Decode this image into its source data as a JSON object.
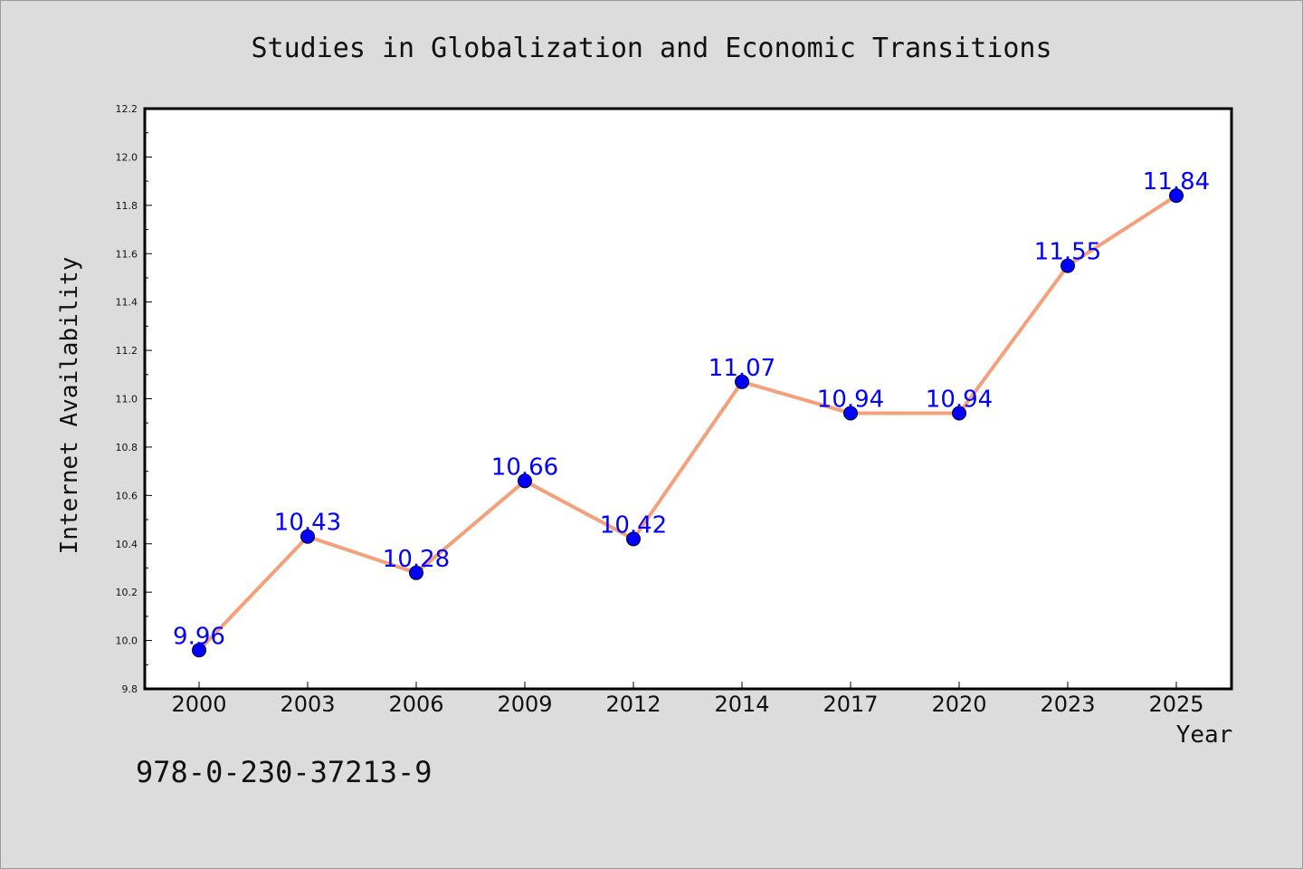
{
  "chart_data": {
    "type": "line",
    "title": "Studies in Globalization and Economic Transitions",
    "xlabel": "Year",
    "ylabel": "Internet Availability",
    "categories": [
      "2000",
      "2003",
      "2006",
      "2009",
      "2012",
      "2014",
      "2017",
      "2020",
      "2023",
      "2025"
    ],
    "series": [
      {
        "values": [
          9.96,
          10.43,
          10.28,
          10.66,
          10.42,
          11.07,
          10.94,
          10.94,
          11.55,
          11.84
        ],
        "data_labels": [
          "9.96",
          "10.43",
          "10.28",
          "10.66",
          "10.42",
          "11.07",
          "10.94",
          "10.94",
          "11.55",
          "11.84"
        ],
        "line_color": "#f4a07a",
        "marker_color": "#0000ff"
      }
    ],
    "ylim": [
      9.8,
      12.2
    ],
    "yticks": [
      "9.8",
      "10.0",
      "10.2",
      "10.4",
      "10.6",
      "10.8",
      "11.0",
      "11.2",
      "11.4",
      "11.6",
      "11.8",
      "12.0",
      "12.2"
    ],
    "grid": false,
    "legend": "none"
  },
  "isbn": "978-0-230-37213-9",
  "colors": {
    "background": "#dcdcdc",
    "plot_background": "#ffffff",
    "line": "#f4a07a",
    "marker": "#0000ff",
    "data_label": "#0000ff"
  }
}
